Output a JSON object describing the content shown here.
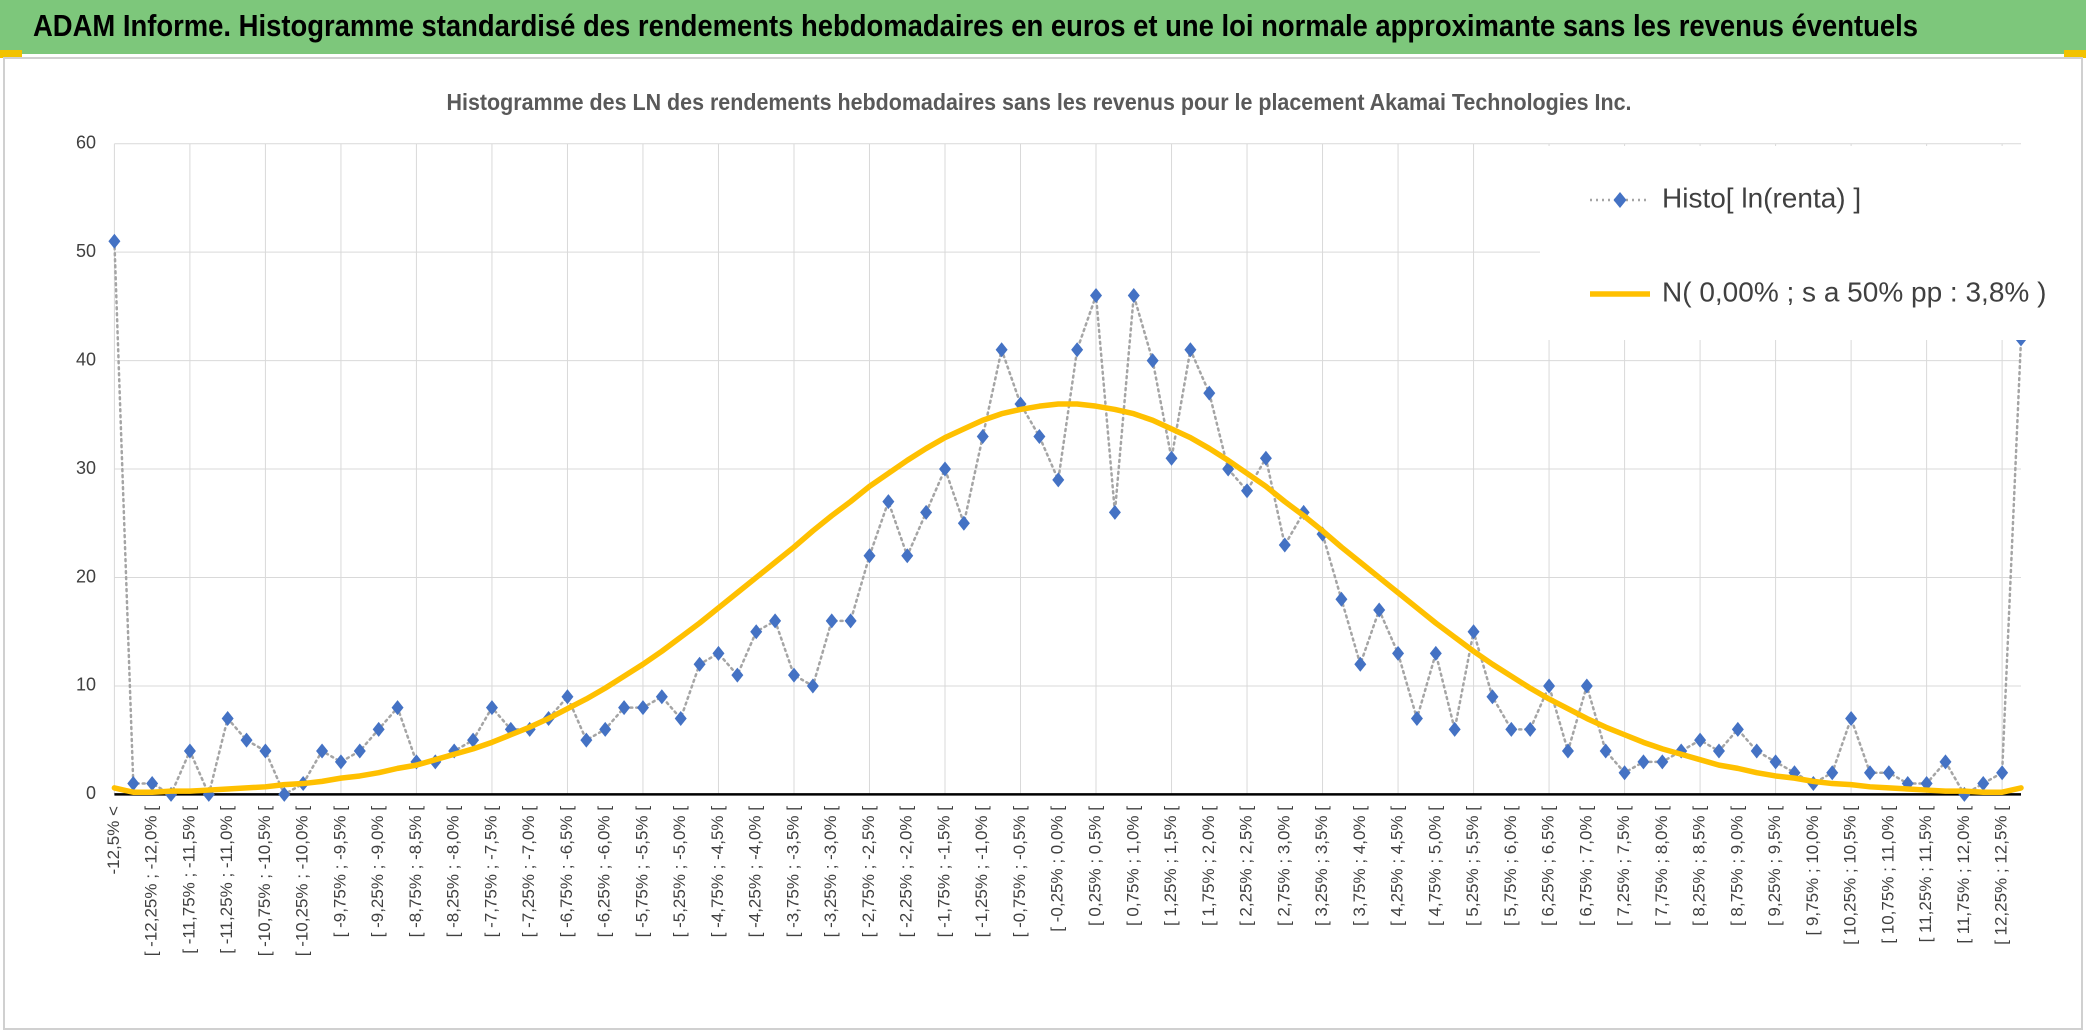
{
  "header": {
    "title": "ADAM Informe. Histogramme standardisé des rendements hebdomadaires en euros et une loi normale approximante sans les revenus éventuels"
  },
  "chart_data": {
    "type": "line",
    "title": "Histogramme des LN des rendements hebdomadaires sans les revenus pour le placement Akamai Technologies Inc.",
    "categories": [
      "-12,5% <",
      null,
      "[ -12,25% ; -12,0% [",
      null,
      "[ -11,75% ; -11,5% [",
      null,
      "[ -11,25% ; -11,0% [",
      null,
      "[ -10,75% ; -10,5% [",
      null,
      "[ -10,25% ; -10,0% [",
      null,
      "[ -9,75% ; -9,5% [",
      null,
      "[ -9,25% ; -9,0% [",
      null,
      "[ -8,75% ; -8,5% [",
      null,
      "[ -8,25% ; -8,0% [",
      null,
      "[ -7,75% ; -7,5% [",
      null,
      "[ -7,25% ; -7,0% [",
      null,
      "[ -6,75% ; -6,5% [",
      null,
      "[ -6,25% ; -6,0% [",
      null,
      "[ -5,75% ; -5,5% [",
      null,
      "[ -5,25% ; -5,0% [",
      null,
      "[ -4,75% ; -4,5% [",
      null,
      "[ -4,25% ; -4,0% [",
      null,
      "[ -3,75% ; -3,5% [",
      null,
      "[ -3,25% ; -3,0% [",
      null,
      "[ -2,75% ; -2,5% [",
      null,
      "[ -2,25% ; -2,0% [",
      null,
      "[ -1,75% ; -1,5% [",
      null,
      "[ -1,25% ; -1,0% [",
      null,
      "[ -0,75% ; -0,5% [",
      null,
      "[ -0,25% ; 0,0% [",
      null,
      "[ 0,25% ; 0,5% [",
      null,
      "[ 0,75% ; 1,0% [",
      null,
      "[ 1,25% ; 1,5% [",
      null,
      "[ 1,75% ; 2,0% [",
      null,
      "[ 2,25% ; 2,5% [",
      null,
      "[ 2,75% ; 3,0% [",
      null,
      "[ 3,25% ; 3,5% [",
      null,
      "[ 3,75% ; 4,0% [",
      null,
      "[ 4,25% ; 4,5% [",
      null,
      "[ 4,75% ; 5,0% [",
      null,
      "[ 5,25% ; 5,5% [",
      null,
      "[ 5,75% ; 6,0% [",
      null,
      "[ 6,25% ; 6,5% [",
      null,
      "[ 6,75% ; 7,0% [",
      null,
      "[ 7,25% ; 7,5% [",
      null,
      "[ 7,75% ; 8,0% [",
      null,
      "[ 8,25% ; 8,5% [",
      null,
      "[ 8,75% ; 9,0% [",
      null,
      "[ 9,25% ; 9,5% [",
      null,
      "[ 9,75% ; 10,0% [",
      null,
      "[ 10,25% ; 10,5% [",
      null,
      "[ 10,75% ; 11,0% [",
      null,
      "[ 11,25% ; 11,5% [",
      null,
      "[ 11,75% ; 12,0% [",
      null,
      "[ 12,25% ; 12,5% [",
      null
    ],
    "series": [
      {
        "name": "Histo[ ln(renta) ]",
        "color": "#4472c4",
        "line_color": "#a5a5a5",
        "line_style": "dotted",
        "marker": "diamond",
        "values": [
          51,
          1,
          1,
          0,
          4,
          0,
          7,
          5,
          4,
          0,
          1,
          4,
          3,
          4,
          6,
          8,
          3,
          3,
          4,
          5,
          8,
          6,
          6,
          7,
          9,
          5,
          6,
          8,
          8,
          9,
          7,
          12,
          13,
          11,
          15,
          16,
          11,
          10,
          16,
          16,
          22,
          27,
          22,
          26,
          30,
          25,
          33,
          41,
          36,
          33,
          29,
          41,
          46,
          26,
          46,
          40,
          31,
          41,
          37,
          30,
          28,
          31,
          23,
          26,
          24,
          18,
          12,
          17,
          13,
          7,
          13,
          6,
          15,
          9,
          6,
          6,
          10,
          4,
          10,
          4,
          2,
          3,
          3,
          4,
          5,
          4,
          6,
          4,
          3,
          2,
          1,
          2,
          7,
          2,
          2,
          1,
          1,
          3,
          0,
          1,
          2,
          42
        ]
      },
      {
        "name": "N( 0,00% ; s a 50% pp : 3,8% )",
        "color": "#ffc000",
        "line_style": "solid",
        "marker": "none",
        "values": [
          0.6,
          0.2,
          0.2,
          0.3,
          0.3,
          0.4,
          0.5,
          0.6,
          0.7,
          0.9,
          1.0,
          1.2,
          1.5,
          1.7,
          2.0,
          2.4,
          2.7,
          3.2,
          3.7,
          4.2,
          4.8,
          5.5,
          6.2,
          7.0,
          7.9,
          8.8,
          9.8,
          10.9,
          12.0,
          13.2,
          14.5,
          15.8,
          17.2,
          18.6,
          20.0,
          21.4,
          22.8,
          24.3,
          25.7,
          27.0,
          28.4,
          29.6,
          30.8,
          31.9,
          32.9,
          33.7,
          34.5,
          35.1,
          35.5,
          35.8,
          36.0,
          36.0,
          35.8,
          35.5,
          35.1,
          34.5,
          33.7,
          32.9,
          31.9,
          30.8,
          29.6,
          28.4,
          27.0,
          25.7,
          24.3,
          22.8,
          21.4,
          20.0,
          18.6,
          17.2,
          15.8,
          14.5,
          13.2,
          12.0,
          10.9,
          9.8,
          8.8,
          7.9,
          7.0,
          6.2,
          5.5,
          4.8,
          4.2,
          3.7,
          3.2,
          2.7,
          2.4,
          2.0,
          1.7,
          1.5,
          1.2,
          1.0,
          0.9,
          0.7,
          0.6,
          0.5,
          0.4,
          0.3,
          0.3,
          0.2,
          0.2,
          0.6
        ]
      }
    ],
    "ylim": [
      0,
      60
    ],
    "yticks": [
      0,
      10,
      20,
      30,
      40,
      50,
      60
    ],
    "grid": true,
    "legend": "upper right"
  }
}
